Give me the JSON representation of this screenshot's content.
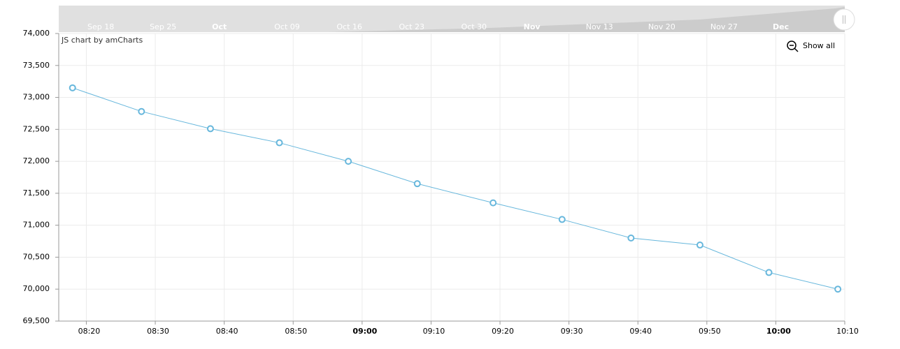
{
  "chart_data": {
    "type": "line",
    "x": [
      "08:18",
      "08:28",
      "08:38",
      "08:48",
      "08:58",
      "09:08",
      "09:19",
      "09:29",
      "09:39",
      "09:49",
      "09:59",
      "10:09"
    ],
    "series": [
      {
        "color": "#67b7dc",
        "values": [
          73150,
          72780,
          72510,
          72290,
          72000,
          71650,
          71350,
          71090,
          70800,
          70690,
          70260,
          70000
        ]
      }
    ],
    "xlim": [
      "08:16",
      "10:10"
    ],
    "xticks": [
      "08:20",
      "08:30",
      "08:40",
      "08:50",
      "09:00",
      "09:10",
      "09:20",
      "09:30",
      "09:40",
      "09:50",
      "10:00",
      "10:10"
    ],
    "ylim": [
      69500,
      74000
    ],
    "yticks": [
      {
        "value": 69500,
        "label": "69,500"
      },
      {
        "value": 70000,
        "label": "70,000"
      },
      {
        "value": 70500,
        "label": "70,500"
      },
      {
        "value": 71000,
        "label": "71,000"
      },
      {
        "value": 71500,
        "label": "71,500"
      },
      {
        "value": 72000,
        "label": "72,000"
      },
      {
        "value": 72500,
        "label": "72,500"
      },
      {
        "value": 73000,
        "label": "73,000"
      },
      {
        "value": 73500,
        "label": "73,500"
      },
      {
        "value": 74000,
        "label": "74,000"
      }
    ],
    "grid": true
  },
  "scrollbar": {
    "labels": [
      "Sep 18",
      "Sep 25",
      "Oct",
      "Oct 09",
      "Oct 16",
      "Oct 23",
      "Oct 30",
      "Nov",
      "Nov 13",
      "Nov 20",
      "Nov 27",
      "Dec"
    ]
  },
  "credit": "JS chart by amCharts",
  "zoom_button": "Show all"
}
